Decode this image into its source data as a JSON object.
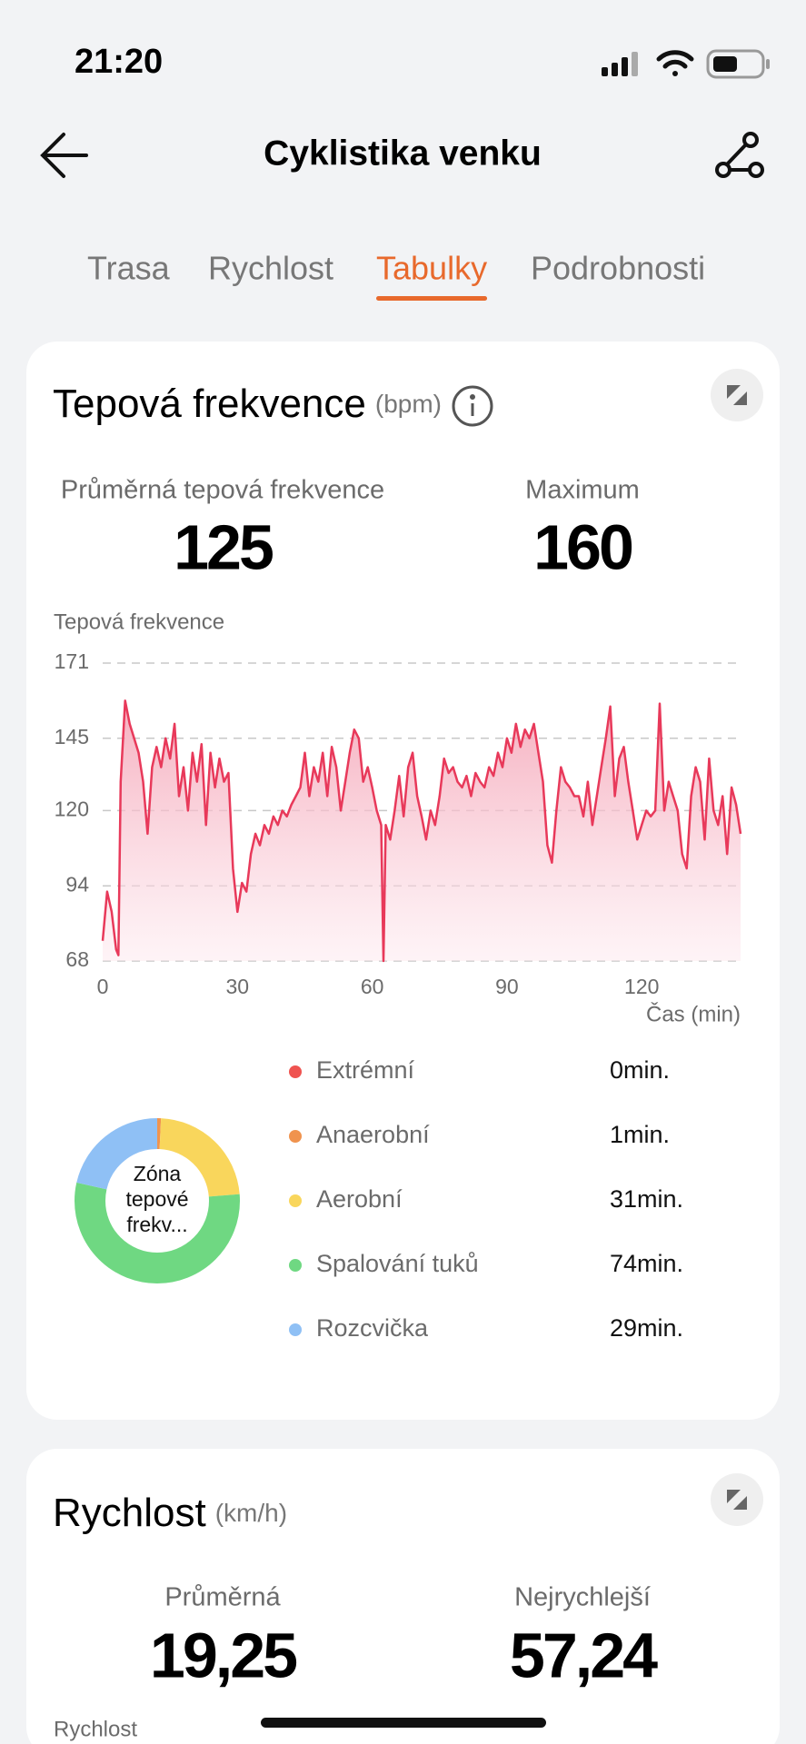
{
  "status_bar": {
    "time": "21:20"
  },
  "header": {
    "title": "Cyklistika venku"
  },
  "tabs": [
    {
      "label": "Trasa"
    },
    {
      "label": "Rychlost"
    },
    {
      "label": "Tabulky",
      "active": true
    },
    {
      "label": "Podrobnosti"
    }
  ],
  "heart_rate_card": {
    "title": "Tepová frekvence",
    "unit": "(bpm)",
    "stats": [
      {
        "label": "Průměrná tepová frekvence",
        "value": 125
      },
      {
        "label": "Maximum",
        "value": 160
      }
    ],
    "chart": {
      "type": "line",
      "y_label": "Tepová frekvence",
      "x_label": "Čas (min)",
      "color": "#e8395a",
      "grid": true,
      "xlim": [
        0,
        142
      ],
      "ylim": [
        68,
        171
      ],
      "xticks": [
        0,
        30,
        60,
        90,
        120
      ],
      "yticks": [
        68,
        94,
        120,
        145,
        171
      ],
      "x": [
        0,
        1,
        2,
        3,
        3.5,
        4,
        5,
        6,
        7,
        8,
        9,
        10,
        11,
        12,
        13,
        14,
        15,
        16,
        17,
        18,
        19,
        20,
        21,
        22,
        23,
        24,
        25,
        26,
        27,
        28,
        29,
        30,
        31,
        32,
        33,
        34,
        35,
        36,
        37,
        38,
        39,
        40,
        41,
        42,
        43,
        44,
        45,
        46,
        47,
        48,
        49,
        50,
        51,
        52,
        53,
        54,
        55,
        56,
        57,
        58,
        59,
        60,
        61,
        62,
        62.5,
        63,
        64,
        65,
        66,
        67,
        68,
        69,
        70,
        71,
        72,
        73,
        74,
        75,
        76,
        77,
        78,
        79,
        80,
        81,
        82,
        83,
        84,
        85,
        86,
        87,
        88,
        89,
        90,
        91,
        92,
        93,
        94,
        95,
        96,
        97,
        98,
        99,
        100,
        101,
        102,
        103,
        104,
        105,
        106,
        107,
        108,
        109,
        110,
        111,
        112,
        113,
        114,
        115,
        116,
        117,
        118,
        119,
        120,
        121,
        122,
        123,
        124,
        125,
        126,
        127,
        128,
        129,
        130,
        131,
        132,
        133,
        134,
        135,
        136,
        137,
        138,
        139,
        140,
        141,
        142
      ],
      "values": [
        75,
        92,
        85,
        72,
        70,
        130,
        158,
        150,
        145,
        140,
        130,
        112,
        135,
        142,
        135,
        145,
        138,
        150,
        125,
        135,
        120,
        140,
        130,
        143,
        115,
        140,
        128,
        138,
        130,
        133,
        100,
        85,
        95,
        92,
        105,
        112,
        108,
        115,
        112,
        118,
        115,
        120,
        118,
        122,
        125,
        128,
        140,
        125,
        135,
        130,
        140,
        125,
        142,
        135,
        120,
        130,
        140,
        148,
        145,
        130,
        135,
        128,
        120,
        115,
        68,
        115,
        110,
        120,
        132,
        118,
        135,
        140,
        125,
        118,
        110,
        120,
        115,
        125,
        138,
        133,
        135,
        130,
        128,
        132,
        125,
        133,
        130,
        128,
        135,
        132,
        140,
        135,
        145,
        140,
        150,
        142,
        148,
        145,
        150,
        140,
        130,
        108,
        102,
        120,
        135,
        130,
        128,
        125,
        125,
        118,
        130,
        115,
        125,
        135,
        145,
        156,
        125,
        138,
        142,
        130,
        120,
        110,
        115,
        120,
        118,
        120,
        157,
        120,
        130,
        125,
        120,
        105,
        100,
        125,
        135,
        130,
        110,
        138,
        120,
        115,
        125,
        105,
        128,
        122,
        112
      ]
    },
    "zones": {
      "type": "donut",
      "center_label": [
        "Zóna",
        "tepové",
        "frekv..."
      ],
      "categories": [
        "Extrémní",
        "Anaerobní",
        "Aerobní",
        "Spalování tuků",
        "Rozcvička"
      ],
      "values": [
        0,
        1,
        31,
        74,
        29
      ],
      "value_labels": [
        "0min.",
        "1min.",
        "31min.",
        "74min.",
        "29min."
      ],
      "colors": [
        "#ef5350",
        "#f0934e",
        "#f9d65c",
        "#6fd882",
        "#8fc0f5"
      ]
    }
  },
  "speed_card": {
    "title": "Rychlost",
    "unit": "(km/h)",
    "stats": [
      {
        "label": "Průměrná",
        "value": "19,25"
      },
      {
        "label": "Nejrychlejší",
        "value": "57,24"
      }
    ],
    "chart_label": "Rychlost"
  }
}
